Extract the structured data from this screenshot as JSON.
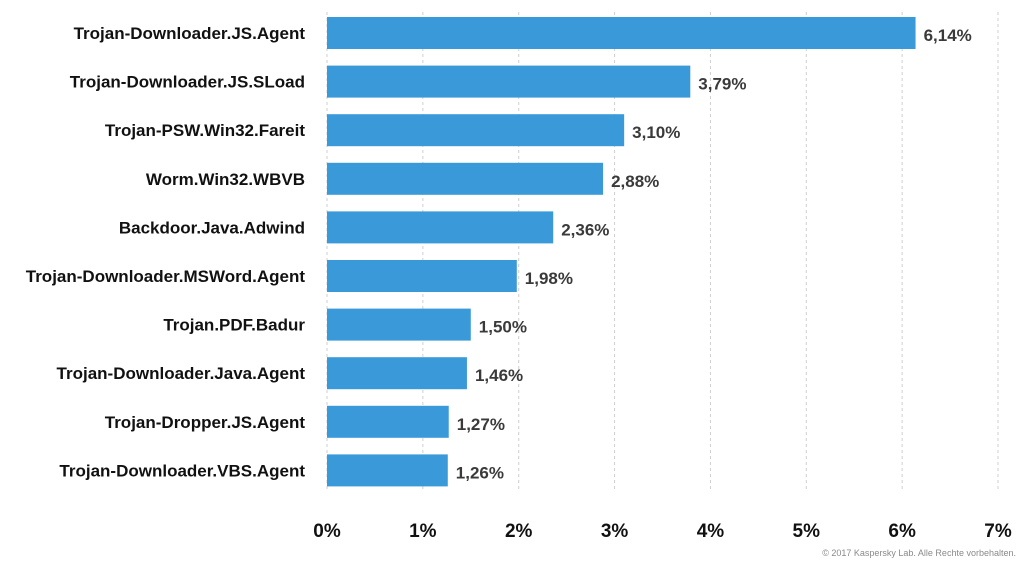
{
  "chart_data": {
    "type": "bar",
    "orientation": "horizontal",
    "categories": [
      "Trojan-Downloader.JS.Agent",
      "Trojan-Downloader.JS.SLoad",
      "Trojan-PSW.Win32.Fareit",
      "Worm.Win32.WBVB",
      "Backdoor.Java.Adwind",
      "Trojan-Downloader.MSWord.Agent",
      "Trojan.PDF.Badur",
      "Trojan-Downloader.Java.Agent",
      "Trojan-Dropper.JS.Agent",
      "Trojan-Downloader.VBS.Agent"
    ],
    "values": [
      6.14,
      3.79,
      3.1,
      2.88,
      2.36,
      1.98,
      1.5,
      1.46,
      1.27,
      1.26
    ],
    "value_labels": [
      "6,14%",
      "3,79%",
      "3,10%",
      "2,88%",
      "2,36%",
      "1,98%",
      "1,50%",
      "1,46%",
      "1,27%",
      "1,26%"
    ],
    "xlim": [
      0,
      7
    ],
    "x_ticks": [
      0,
      1,
      2,
      3,
      4,
      5,
      6,
      7
    ],
    "x_tick_labels": [
      "0%",
      "1%",
      "2%",
      "3%",
      "4%",
      "5%",
      "6%",
      "7%"
    ],
    "grid": "vertical-dashed",
    "bar_color": "#3a9ad9",
    "title": "",
    "xlabel": "",
    "ylabel": ""
  },
  "footer": {
    "copyright": "© 2017 Kaspersky Lab. Alle Rechte vorbehalten."
  }
}
